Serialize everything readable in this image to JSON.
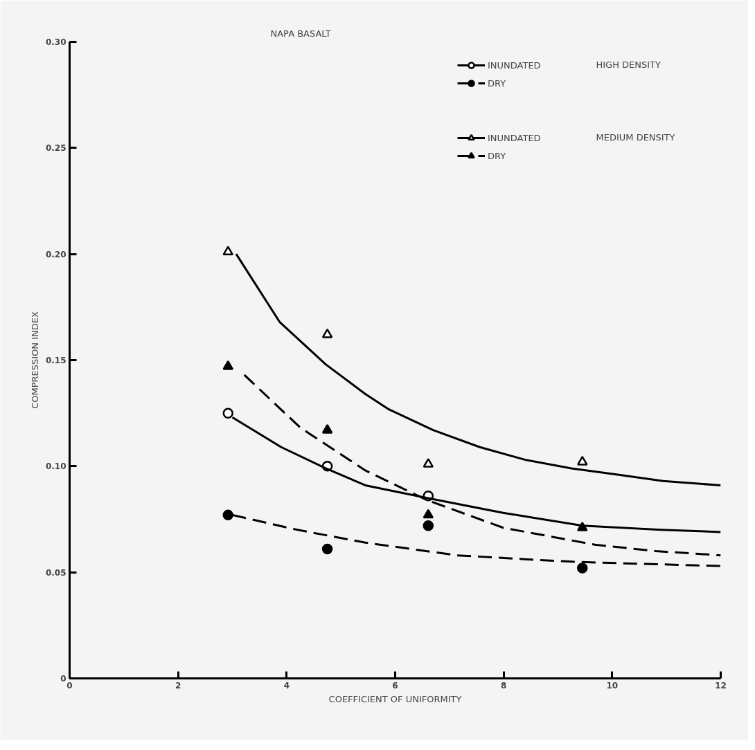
{
  "chart_data": {
    "type": "scatter",
    "title": "NAPA BASALT",
    "xlabel": "COEFFICIENT OF UNIFORMITY",
    "ylabel": "COMPRESSION INDEX",
    "xlim": [
      0,
      12
    ],
    "ylim": [
      0,
      0.3
    ],
    "xticks": [
      0,
      2,
      4,
      6,
      8,
      10,
      12
    ],
    "yticks": [
      0,
      {
        "value": 0.05,
        "label": "0.05"
      },
      {
        "value": 0.1,
        "label": "0.10"
      },
      {
        "value": 0.15,
        "label": "0.15"
      },
      {
        "value": 0.2,
        "label": "0.20"
      },
      {
        "value": 0.25,
        "label": "0.25"
      },
      {
        "value": 0.3,
        "label": "0.30"
      }
    ],
    "grid": false,
    "legend": "top right",
    "annotations": [
      "HIGH DENSITY",
      "MEDIUM DENSITY"
    ],
    "series": [
      {
        "name": "INUNDATED",
        "marker": "circle",
        "color": "#ffffff",
        "x": [
          2.92,
          4.75,
          6.61
        ],
        "values": [
          0.125,
          0.1,
          0.086
        ]
      },
      {
        "type": "line",
        "marker": "none",
        "line_style": "solid",
        "color": "#000000",
        "x": [
          3.0,
          3.9,
          4.72,
          5.45,
          6.59,
          7.99,
          9.45,
          10.9,
          12.0
        ],
        "values": [
          0.123,
          0.109,
          0.099,
          0.091,
          0.085,
          0.078,
          0.072,
          0.07,
          0.069
        ]
      },
      {
        "name": "DRY",
        "marker": "circle",
        "color": "#000000",
        "x": [
          2.92,
          4.75,
          6.61,
          9.45
        ],
        "values": [
          0.077,
          0.061,
          0.072,
          0.052
        ]
      },
      {
        "type": "line",
        "marker": "none",
        "line_style": "dashed",
        "color": "#000000",
        "x": [
          3.0,
          4.2,
          5.45,
          7.14,
          8.5,
          9.25,
          10.5,
          12.0
        ],
        "values": [
          0.077,
          0.07,
          0.064,
          0.058,
          0.056,
          0.055,
          0.054,
          0.053
        ]
      },
      {
        "name": "INUNDATED",
        "marker": "triangle",
        "color": "#ffffff",
        "x": [
          2.92,
          4.75,
          6.61,
          9.45
        ],
        "values": [
          0.201,
          0.162,
          0.101,
          0.102
        ]
      },
      {
        "type": "line",
        "marker": "none",
        "line_style": "solid",
        "color": "#000000",
        "x": [
          3.07,
          3.87,
          4.72,
          5.45,
          5.87,
          6.7,
          7.56,
          8.4,
          9.25,
          10.1,
          10.94,
          12.0
        ],
        "values": [
          0.2,
          0.168,
          0.148,
          0.134,
          0.127,
          0.117,
          0.109,
          0.103,
          0.099,
          0.096,
          0.093,
          0.091
        ]
      },
      {
        "name": "DRY",
        "marker": "triangle",
        "color": "#000000",
        "x": [
          2.92,
          4.75,
          6.61,
          9.45
        ],
        "values": [
          0.147,
          0.117,
          0.077,
          0.071
        ]
      },
      {
        "type": "line",
        "marker": "none",
        "line_style": "dashed",
        "color": "#000000",
        "x": [
          3.22,
          4.26,
          5.45,
          6.59,
          7.99,
          9.68,
          10.8,
          12.0
        ],
        "values": [
          0.143,
          0.118,
          0.098,
          0.084,
          0.071,
          0.063,
          0.06,
          0.058
        ]
      }
    ]
  }
}
